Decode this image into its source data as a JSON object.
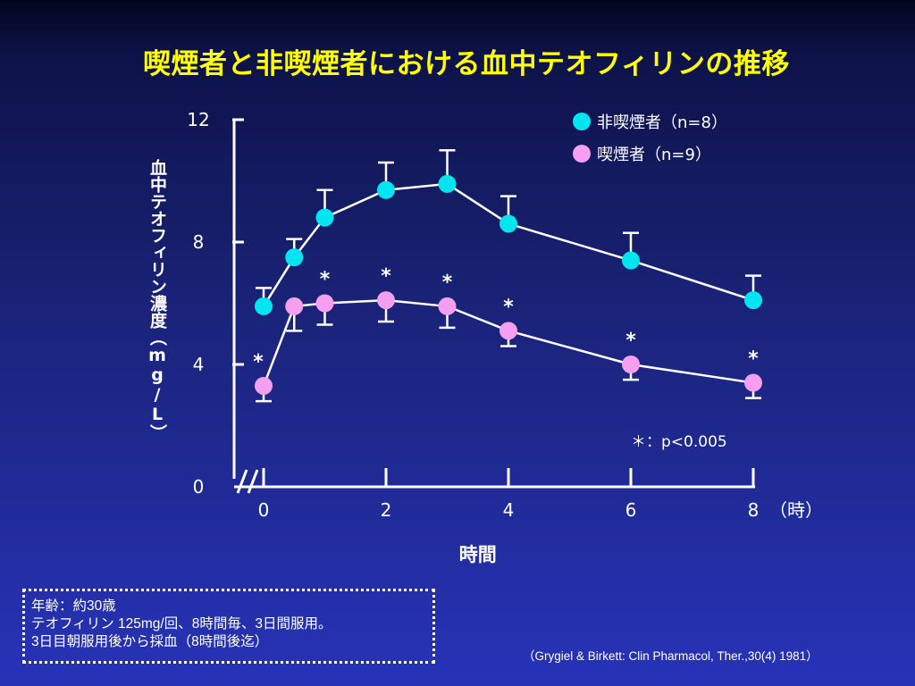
{
  "chart_data": {
    "type": "line",
    "title": "喫煙者と非喫煙者における血中テオフィリンの推移",
    "xlabel": "時間",
    "x_unit_label": "（時）",
    "ylabel": "血中テオフィリン濃度（mg/L）",
    "xlim": [
      0,
      8
    ],
    "ylim": [
      0,
      12
    ],
    "x_ticks": [
      "0",
      "2",
      "4",
      "6",
      "8"
    ],
    "y_ticks": [
      "0",
      "4",
      "8",
      "12"
    ],
    "legend_position": "top-right",
    "significance_note": "＊：p<0.005",
    "series": [
      {
        "name": "非喫煙者（n=8）",
        "color": "#00e5f0",
        "x": [
          0,
          0.5,
          1,
          2,
          3,
          4,
          6,
          8
        ],
        "y": [
          5.9,
          7.5,
          8.8,
          9.7,
          9.9,
          8.6,
          7.4,
          6.1
        ],
        "error_upper": [
          6.5,
          8.1,
          9.7,
          10.6,
          11.0,
          9.5,
          8.3,
          6.9
        ]
      },
      {
        "name": "喫煙者（n=9）",
        "color": "#f59ff0",
        "x": [
          0,
          0.5,
          1,
          2,
          3,
          4,
          6,
          8
        ],
        "y": [
          3.3,
          5.9,
          6.0,
          6.1,
          5.9,
          5.1,
          4.0,
          3.4
        ],
        "error_lower": [
          2.8,
          5.1,
          5.3,
          5.4,
          5.2,
          4.6,
          3.5,
          2.9
        ],
        "significant": [
          true,
          false,
          true,
          true,
          true,
          true,
          true,
          true
        ]
      }
    ]
  },
  "note": {
    "line1": "年齢：約30歳",
    "line2": "テオフィリン 125mg/回、8時間毎、3日間服用。",
    "line3": "3日目朝服用後から採血（8時間後迄）"
  },
  "citation": "（Grygiel & Birkett: Clin Pharmacol, Ther.,30(4) 1981）"
}
